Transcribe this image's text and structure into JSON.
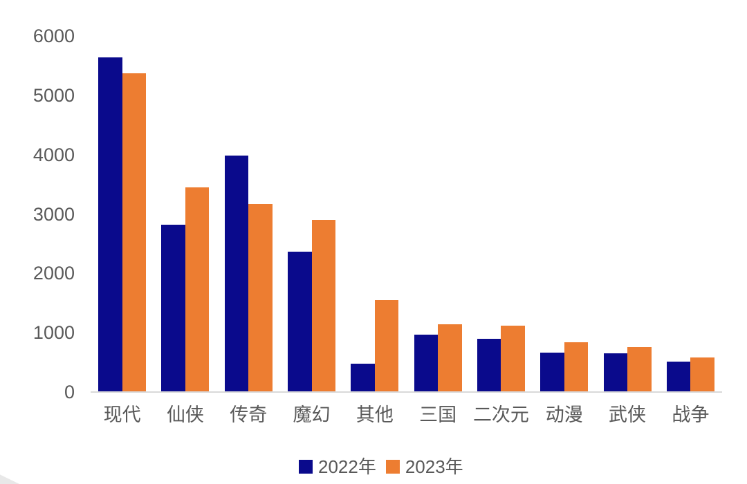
{
  "chart_data": {
    "type": "bar",
    "title": "",
    "xlabel": "",
    "ylabel": "",
    "categories": [
      "现代",
      "仙侠",
      "传奇",
      "魔幻",
      "其他",
      "三国",
      "二次元",
      "动漫",
      "武侠",
      "战争"
    ],
    "series": [
      {
        "name": "2022年",
        "color": "#0a0a8c",
        "values": [
          5640,
          2820,
          3990,
          2370,
          480,
          970,
          900,
          660,
          650,
          510
        ]
      },
      {
        "name": "2023年",
        "color": "#ed7d31",
        "values": [
          5370,
          3450,
          3170,
          2900,
          1550,
          1140,
          1120,
          840,
          760,
          580
        ]
      }
    ],
    "ylim": [
      0,
      6000
    ],
    "yticks": [
      0,
      1000,
      2000,
      3000,
      4000,
      5000,
      6000
    ],
    "grid": false,
    "legend_position": "bottom"
  },
  "colors": {
    "axis_line": "#d9d9d9",
    "tick_label": "#595959",
    "background": "#ffffff"
  }
}
